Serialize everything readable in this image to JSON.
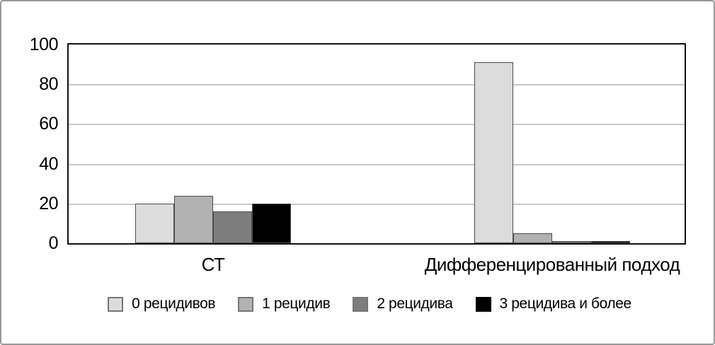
{
  "chart_data": {
    "type": "bar",
    "title": "",
    "categories": [
      "СТ",
      "Дифференцированный подход"
    ],
    "series": [
      {
        "name": "0 рецидивов",
        "color": "#dcdcdc",
        "values": [
          20,
          91
        ]
      },
      {
        "name": "1 рецидив",
        "color": "#b2b2b2",
        "values": [
          24,
          5
        ]
      },
      {
        "name": "2 рецидива",
        "color": "#7d7d7d",
        "values": [
          16,
          1
        ]
      },
      {
        "name": "3 рецидива и более",
        "color": "#000000",
        "values": [
          20,
          1
        ]
      }
    ],
    "xlabel": "",
    "ylabel": "",
    "ylim": [
      0,
      100
    ],
    "yticks": [
      0,
      20,
      40,
      60,
      80,
      100
    ],
    "grid": true,
    "legend_position": "bottom"
  },
  "colors": {
    "background": "#ffffff",
    "outer_border": "#999999",
    "plot_border": "#111111",
    "gridline": "#c9c9c9",
    "bar_border": "#4d4d4d",
    "swatch_border": "#757575"
  }
}
